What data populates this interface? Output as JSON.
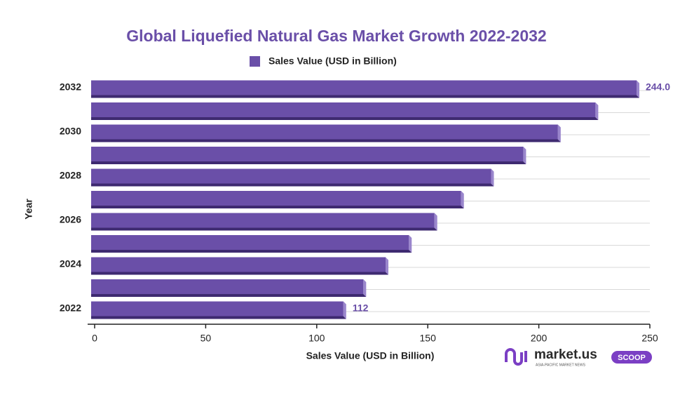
{
  "chart_data": {
    "type": "hbar",
    "title": "Global Liquefied Natural Gas Market Growth 2022-2032",
    "x_label": "Sales Value (USD in Billion)",
    "y_label": "Year",
    "categories": [
      "2022",
      null,
      "2024",
      null,
      "2026",
      null,
      "2028",
      null,
      "2030",
      null,
      "2032"
    ],
    "series": [
      {
        "name": "Sales Value (USD in Billion)",
        "color": "#6a4fa8",
        "values": [
          112,
          121,
          131,
          141.5,
          153,
          165,
          178.5,
          193,
          208.6,
          225.5,
          244.0
        ],
        "value_labels": [
          "112",
          null,
          null,
          null,
          null,
          null,
          null,
          null,
          null,
          null,
          "244.0"
        ]
      }
    ],
    "xlim": [
      0,
      250
    ],
    "xticks": [
      0,
      50,
      100,
      150,
      200,
      250
    ],
    "grid": true
  },
  "logo": {
    "brand": "market.us",
    "tagline": "ASIA-PACIFIC MARKET NEWS",
    "badge": "SCOOP"
  }
}
